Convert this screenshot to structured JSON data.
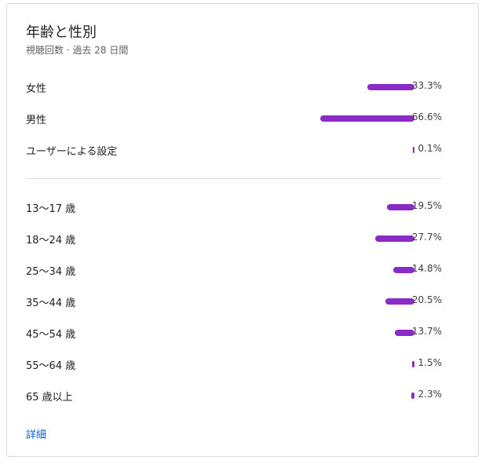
{
  "card": {
    "title": "年齢と性別",
    "subtitle": "視聴回数 · 過去 28 日間",
    "details_link": "詳細"
  },
  "colors": {
    "bar": "#8b2bc7"
  },
  "chart_data": [
    {
      "type": "bar",
      "orientation": "horizontal",
      "categories": [
        "女性",
        "男性",
        "ユーザーによる設定"
      ],
      "values": [
        33.3,
        66.6,
        0.1
      ],
      "labels": [
        "33.3%",
        "66.6%",
        "0.1%"
      ]
    },
    {
      "type": "bar",
      "orientation": "horizontal",
      "categories": [
        "13〜17 歳",
        "18〜24 歳",
        "25〜34 歳",
        "35〜44 歳",
        "45〜54 歳",
        "55〜64 歳",
        "65 歳以上"
      ],
      "values": [
        19.5,
        27.7,
        14.8,
        20.5,
        13.7,
        1.5,
        2.3
      ],
      "labels": [
        "19.5%",
        "27.7%",
        "14.8%",
        "20.5%",
        "13.7%",
        "1.5%",
        "2.3%"
      ]
    }
  ]
}
